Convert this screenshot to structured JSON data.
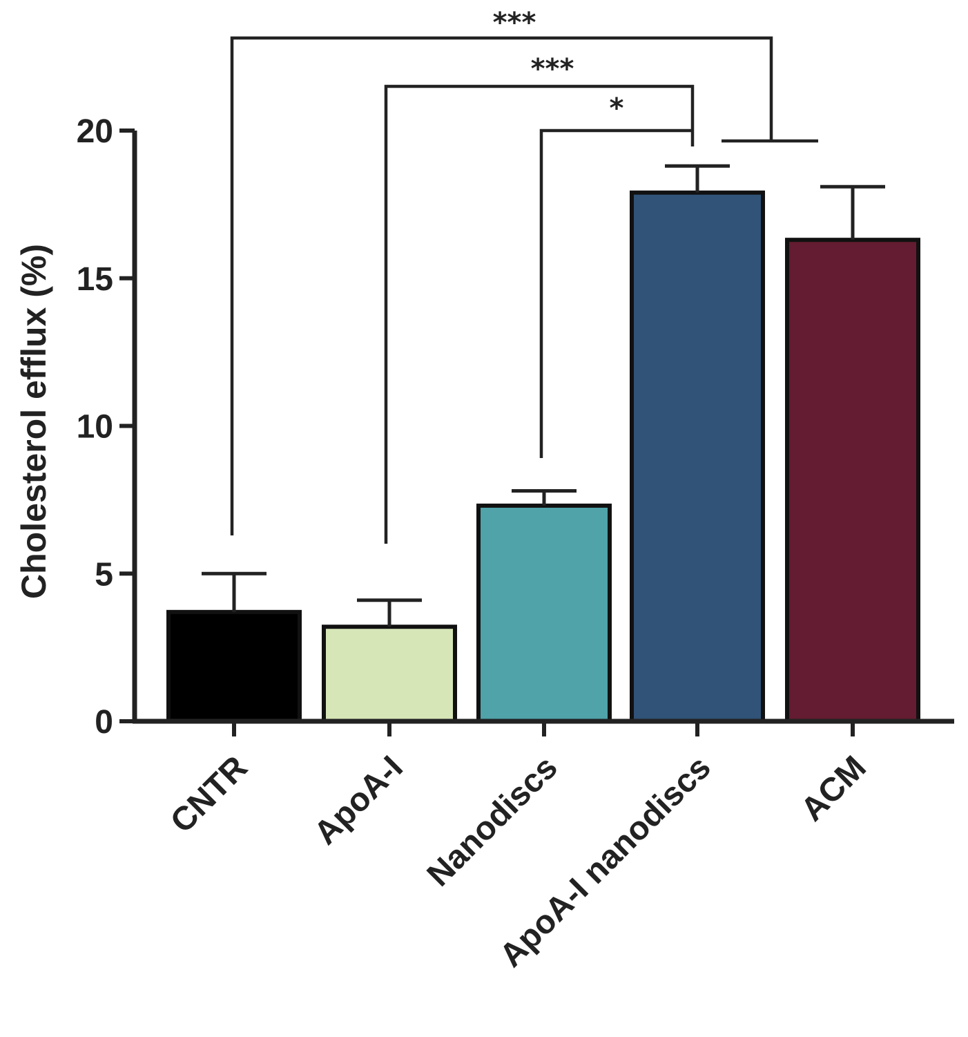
{
  "chart_data": {
    "type": "bar",
    "ylabel": "Cholesterol efflux (%)",
    "xlabel": "",
    "ylim": [
      0,
      20
    ],
    "yticks": [
      0,
      5,
      10,
      15,
      20
    ],
    "ytick_labels": [
      "0",
      "5",
      "10",
      "15",
      "20"
    ],
    "grid": false,
    "legend": "none",
    "bars": [
      {
        "category": "CNTR",
        "value": 3.7,
        "error": 1.3,
        "color": "#000000"
      },
      {
        "category": "ApoA-I",
        "value": 3.2,
        "error": 0.9,
        "color": "#d6e6b6"
      },
      {
        "category": "Nanodiscs",
        "value": 7.3,
        "error": 0.5,
        "color": "#4fa3a9"
      },
      {
        "category": "ApoA-I nanodiscs",
        "value": 17.9,
        "error": 0.9,
        "color": "#305377"
      },
      {
        "category": "ACM",
        "value": 16.3,
        "error": 1.8,
        "color": "#631c31"
      }
    ],
    "significance": [
      {
        "label": "***",
        "from": "CNTR",
        "to": "ApoA-I nanodiscs + ACM"
      },
      {
        "label": "***",
        "from": "ApoA-I",
        "to": "ApoA-I nanodiscs"
      },
      {
        "label": "*",
        "from": "Nanodiscs",
        "to": "ApoA-I nanodiscs"
      }
    ]
  }
}
